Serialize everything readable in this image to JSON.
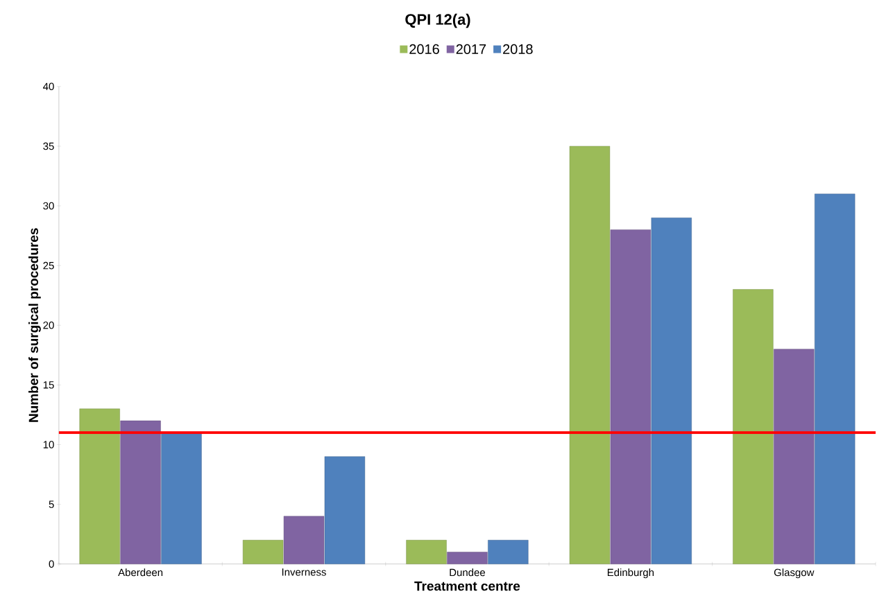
{
  "chart_data": {
    "type": "bar",
    "title": "QPI 12(a)",
    "xlabel": "Treatment centre",
    "ylabel": "Number of surgical procedures",
    "categories": [
      "Aberdeen",
      "Inverness",
      "Dundee",
      "Edinburgh",
      "Glasgow"
    ],
    "series": [
      {
        "name": "2016",
        "color": "#9bbb59",
        "values": [
          13,
          2,
          2,
          35,
          23
        ]
      },
      {
        "name": "2017",
        "color": "#8064a2",
        "values": [
          12,
          4,
          1,
          28,
          18
        ]
      },
      {
        "name": "2018",
        "color": "#4f81bd",
        "values": [
          11,
          9,
          2,
          29,
          31
        ]
      }
    ],
    "ylim": [
      0,
      40
    ],
    "yticks": [
      0,
      5,
      10,
      15,
      20,
      25,
      30,
      35,
      40
    ],
    "ref_lines": [
      {
        "axis": "y",
        "value": 11,
        "color": "#ff0000"
      }
    ],
    "legend": "top"
  }
}
